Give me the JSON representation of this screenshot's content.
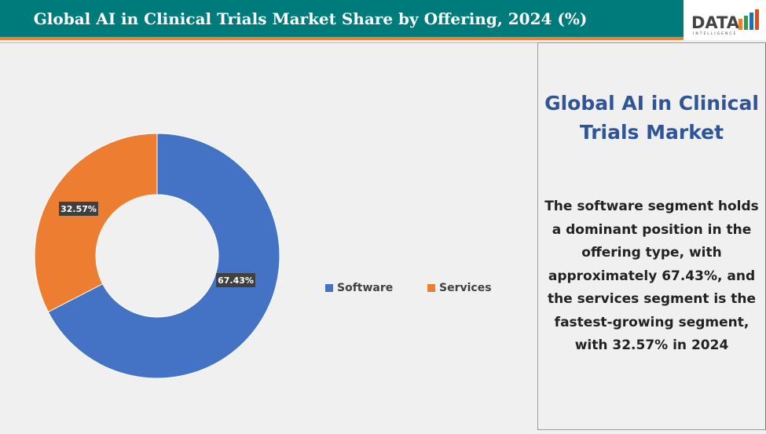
{
  "header": {
    "title": "Global AI in Clinical Trials Market Share by Offering, 2024 (%)"
  },
  "logo": {
    "text": "DATA",
    "subtext": "INTELLIGENCE"
  },
  "panel": {
    "title": "Global AI in Clinical Trials Market",
    "text": "The software segment holds a dominant position in the offering type, with approximately 67.43%, and the services segment is the fastest-growing segment, with 32.57% in 2024"
  },
  "chart_data": {
    "type": "pie",
    "donut": true,
    "categories": [
      "Software",
      "Services"
    ],
    "values": [
      67.43,
      32.57
    ],
    "labels": [
      "67.43%",
      "32.57%"
    ],
    "colors": [
      "#4472c4",
      "#ed7d31"
    ],
    "legend": "right"
  }
}
